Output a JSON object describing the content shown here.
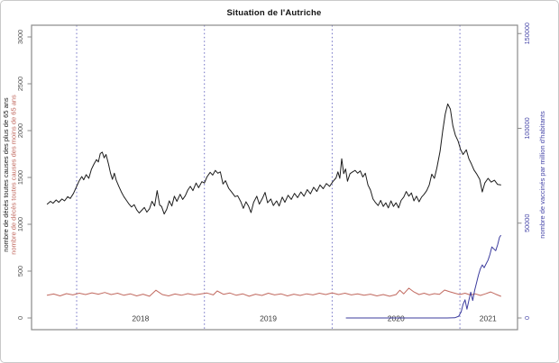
{
  "chart_data": {
    "type": "line",
    "title": "Situation de l'Autriche",
    "frame_color": "#8a8a8a",
    "x": {
      "range": [
        2017.647,
        2021.451
      ],
      "year_gridlines": [
        2018,
        2019,
        2020,
        2021
      ],
      "grid_color": "#7070c4",
      "label_color": "#3a3a3a",
      "year_labels": [
        {
          "text": "2018",
          "t": 2018.5
        },
        {
          "text": "2019",
          "t": 2019.5
        },
        {
          "text": "2020",
          "t": 2020.5
        },
        {
          "text": "2021",
          "t": 2021.22
        }
      ]
    },
    "y_left": {
      "title_over65": "nombre de décès toutes causes des plus de 65 ans",
      "title_under65": "nombre de décès toutes causes des moins de 65 ans",
      "title_color_over65": "#1c1c1c",
      "title_color_under65": "#c1695f",
      "ticks": [
        0,
        500,
        1000,
        1500,
        2000,
        2500,
        3000
      ],
      "range": [
        -125,
        3125
      ],
      "tick_color": "#4d4d4d"
    },
    "y_right": {
      "title": "nombre de vaccinés par million d'habitants",
      "ticks": [
        0,
        50000,
        100000,
        150000
      ],
      "range": [
        -6175,
        154375
      ],
      "tick_color": "#4646a8"
    },
    "series": [
      {
        "name": "deces-plus-65",
        "label": "nombre de décès toutes causes des plus de 65 ans",
        "color": "#1c1c1c",
        "axis": "left",
        "points": [
          [
            2017.77,
            1215
          ],
          [
            2017.795,
            1245
          ],
          [
            2017.815,
            1225
          ],
          [
            2017.84,
            1260
          ],
          [
            2017.86,
            1235
          ],
          [
            2017.885,
            1270
          ],
          [
            2017.905,
            1250
          ],
          [
            2017.93,
            1295
          ],
          [
            2017.95,
            1275
          ],
          [
            2017.975,
            1330
          ],
          [
            2018.0,
            1405
          ],
          [
            2018.02,
            1465
          ],
          [
            2018.04,
            1510
          ],
          [
            2018.055,
            1475
          ],
          [
            2018.075,
            1530
          ],
          [
            2018.095,
            1490
          ],
          [
            2018.115,
            1585
          ],
          [
            2018.135,
            1640
          ],
          [
            2018.155,
            1690
          ],
          [
            2018.17,
            1665
          ],
          [
            2018.185,
            1755
          ],
          [
            2018.2,
            1770
          ],
          [
            2018.215,
            1710
          ],
          [
            2018.23,
            1745
          ],
          [
            2018.25,
            1640
          ],
          [
            2018.265,
            1545
          ],
          [
            2018.28,
            1480
          ],
          [
            2018.295,
            1545
          ],
          [
            2018.31,
            1470
          ],
          [
            2018.33,
            1405
          ],
          [
            2018.35,
            1345
          ],
          [
            2018.37,
            1295
          ],
          [
            2018.39,
            1255
          ],
          [
            2018.41,
            1215
          ],
          [
            2018.43,
            1185
          ],
          [
            2018.45,
            1210
          ],
          [
            2018.47,
            1155
          ],
          [
            2018.49,
            1120
          ],
          [
            2018.51,
            1150
          ],
          [
            2018.53,
            1180
          ],
          [
            2018.55,
            1130
          ],
          [
            2018.57,
            1165
          ],
          [
            2018.59,
            1245
          ],
          [
            2018.61,
            1195
          ],
          [
            2018.63,
            1360
          ],
          [
            2018.65,
            1205
          ],
          [
            2018.665,
            1190
          ],
          [
            2018.685,
            1110
          ],
          [
            2018.705,
            1160
          ],
          [
            2018.725,
            1250
          ],
          [
            2018.745,
            1195
          ],
          [
            2018.765,
            1300
          ],
          [
            2018.785,
            1245
          ],
          [
            2018.81,
            1320
          ],
          [
            2018.83,
            1265
          ],
          [
            2018.85,
            1305
          ],
          [
            2018.87,
            1365
          ],
          [
            2018.89,
            1405
          ],
          [
            2018.91,
            1360
          ],
          [
            2018.935,
            1440
          ],
          [
            2018.955,
            1390
          ],
          [
            2018.98,
            1455
          ],
          [
            2019.0,
            1440
          ],
          [
            2019.02,
            1505
          ],
          [
            2019.045,
            1555
          ],
          [
            2019.065,
            1525
          ],
          [
            2019.085,
            1575
          ],
          [
            2019.105,
            1545
          ],
          [
            2019.125,
            1560
          ],
          [
            2019.145,
            1430
          ],
          [
            2019.165,
            1465
          ],
          [
            2019.19,
            1385
          ],
          [
            2019.215,
            1340
          ],
          [
            2019.24,
            1295
          ],
          [
            2019.26,
            1305
          ],
          [
            2019.285,
            1240
          ],
          [
            2019.305,
            1170
          ],
          [
            2019.325,
            1240
          ],
          [
            2019.345,
            1195
          ],
          [
            2019.365,
            1125
          ],
          [
            2019.385,
            1235
          ],
          [
            2019.41,
            1300
          ],
          [
            2019.43,
            1215
          ],
          [
            2019.455,
            1280
          ],
          [
            2019.475,
            1340
          ],
          [
            2019.495,
            1230
          ],
          [
            2019.52,
            1270
          ],
          [
            2019.54,
            1200
          ],
          [
            2019.565,
            1250
          ],
          [
            2019.585,
            1195
          ],
          [
            2019.61,
            1290
          ],
          [
            2019.63,
            1235
          ],
          [
            2019.655,
            1310
          ],
          [
            2019.68,
            1265
          ],
          [
            2019.705,
            1330
          ],
          [
            2019.73,
            1285
          ],
          [
            2019.755,
            1345
          ],
          [
            2019.78,
            1300
          ],
          [
            2019.805,
            1370
          ],
          [
            2019.83,
            1325
          ],
          [
            2019.855,
            1395
          ],
          [
            2019.88,
            1350
          ],
          [
            2019.905,
            1420
          ],
          [
            2019.93,
            1380
          ],
          [
            2019.955,
            1435
          ],
          [
            2019.98,
            1405
          ],
          [
            2020.005,
            1455
          ],
          [
            2020.03,
            1495
          ],
          [
            2020.045,
            1560
          ],
          [
            2020.06,
            1490
          ],
          [
            2020.075,
            1700
          ],
          [
            2020.09,
            1540
          ],
          [
            2020.105,
            1590
          ],
          [
            2020.12,
            1460
          ],
          [
            2020.14,
            1540
          ],
          [
            2020.16,
            1560
          ],
          [
            2020.18,
            1575
          ],
          [
            2020.2,
            1545
          ],
          [
            2020.22,
            1570
          ],
          [
            2020.24,
            1505
          ],
          [
            2020.26,
            1545
          ],
          [
            2020.28,
            1420
          ],
          [
            2020.3,
            1365
          ],
          [
            2020.32,
            1270
          ],
          [
            2020.34,
            1230
          ],
          [
            2020.36,
            1200
          ],
          [
            2020.38,
            1255
          ],
          [
            2020.4,
            1190
          ],
          [
            2020.42,
            1230
          ],
          [
            2020.44,
            1175
          ],
          [
            2020.46,
            1250
          ],
          [
            2020.48,
            1190
          ],
          [
            2020.5,
            1230
          ],
          [
            2020.52,
            1175
          ],
          [
            2020.54,
            1255
          ],
          [
            2020.56,
            1290
          ],
          [
            2020.58,
            1350
          ],
          [
            2020.6,
            1300
          ],
          [
            2020.62,
            1335
          ],
          [
            2020.64,
            1250
          ],
          [
            2020.66,
            1300
          ],
          [
            2020.68,
            1240
          ],
          [
            2020.7,
            1290
          ],
          [
            2020.72,
            1320
          ],
          [
            2020.74,
            1360
          ],
          [
            2020.76,
            1420
          ],
          [
            2020.78,
            1535
          ],
          [
            2020.8,
            1490
          ],
          [
            2020.82,
            1605
          ],
          [
            2020.845,
            1780
          ],
          [
            2020.865,
            1995
          ],
          [
            2020.885,
            2175
          ],
          [
            2020.905,
            2285
          ],
          [
            2020.925,
            2230
          ],
          [
            2020.945,
            2050
          ],
          [
            2020.965,
            1950
          ],
          [
            2020.985,
            1890
          ],
          [
            2021.005,
            1800
          ],
          [
            2021.025,
            1745
          ],
          [
            2021.05,
            1795
          ],
          [
            2021.07,
            1700
          ],
          [
            2021.09,
            1645
          ],
          [
            2021.11,
            1580
          ],
          [
            2021.13,
            1540
          ],
          [
            2021.155,
            1480
          ],
          [
            2021.175,
            1345
          ],
          [
            2021.195,
            1440
          ],
          [
            2021.22,
            1490
          ],
          [
            2021.245,
            1450
          ],
          [
            2021.27,
            1470
          ],
          [
            2021.295,
            1425
          ],
          [
            2021.32,
            1420
          ]
        ]
      },
      {
        "name": "deces-moins-65",
        "label": "nombre de décès toutes causes des moins de 65 ans",
        "color": "#c1695f",
        "axis": "left",
        "points": [
          [
            2017.77,
            242
          ],
          [
            2017.82,
            256
          ],
          [
            2017.87,
            236
          ],
          [
            2017.92,
            260
          ],
          [
            2017.97,
            246
          ],
          [
            2018.02,
            264
          ],
          [
            2018.07,
            250
          ],
          [
            2018.12,
            268
          ],
          [
            2018.17,
            254
          ],
          [
            2018.22,
            272
          ],
          [
            2018.27,
            250
          ],
          [
            2018.32,
            264
          ],
          [
            2018.37,
            242
          ],
          [
            2018.42,
            258
          ],
          [
            2018.47,
            236
          ],
          [
            2018.52,
            254
          ],
          [
            2018.57,
            232
          ],
          [
            2018.62,
            296
          ],
          [
            2018.67,
            250
          ],
          [
            2018.72,
            236
          ],
          [
            2018.77,
            256
          ],
          [
            2018.82,
            242
          ],
          [
            2018.87,
            260
          ],
          [
            2018.92,
            246
          ],
          [
            2018.97,
            256
          ],
          [
            2019.02,
            266
          ],
          [
            2019.07,
            246
          ],
          [
            2019.1,
            288
          ],
          [
            2019.15,
            252
          ],
          [
            2019.2,
            266
          ],
          [
            2019.25,
            242
          ],
          [
            2019.3,
            258
          ],
          [
            2019.35,
            232
          ],
          [
            2019.4,
            254
          ],
          [
            2019.45,
            240
          ],
          [
            2019.5,
            264
          ],
          [
            2019.55,
            246
          ],
          [
            2019.6,
            258
          ],
          [
            2019.65,
            236
          ],
          [
            2019.7,
            254
          ],
          [
            2019.75,
            240
          ],
          [
            2019.8,
            258
          ],
          [
            2019.85,
            246
          ],
          [
            2019.9,
            264
          ],
          [
            2019.95,
            250
          ],
          [
            2020.0,
            268
          ],
          [
            2020.05,
            250
          ],
          [
            2020.1,
            264
          ],
          [
            2020.15,
            246
          ],
          [
            2020.2,
            258
          ],
          [
            2020.25,
            242
          ],
          [
            2020.3,
            254
          ],
          [
            2020.35,
            236
          ],
          [
            2020.4,
            250
          ],
          [
            2020.45,
            232
          ],
          [
            2020.5,
            250
          ],
          [
            2020.53,
            296
          ],
          [
            2020.56,
            258
          ],
          [
            2020.6,
            318
          ],
          [
            2020.64,
            278
          ],
          [
            2020.68,
            250
          ],
          [
            2020.72,
            264
          ],
          [
            2020.76,
            246
          ],
          [
            2020.8,
            260
          ],
          [
            2020.84,
            252
          ],
          [
            2020.88,
            298
          ],
          [
            2020.92,
            280
          ],
          [
            2020.96,
            264
          ],
          [
            2021.0,
            250
          ],
          [
            2021.04,
            264
          ],
          [
            2021.08,
            246
          ],
          [
            2021.12,
            258
          ],
          [
            2021.16,
            240
          ],
          [
            2021.2,
            258
          ],
          [
            2021.24,
            278
          ],
          [
            2021.28,
            254
          ],
          [
            2021.32,
            232
          ]
        ]
      },
      {
        "name": "vaccines-par-million",
        "label": "nombre de vaccinés par million d'habitants",
        "color": "#3c3c9e",
        "axis": "right",
        "points": [
          [
            2020.11,
            0
          ],
          [
            2020.2,
            0
          ],
          [
            2020.3,
            0
          ],
          [
            2020.4,
            0
          ],
          [
            2020.5,
            0
          ],
          [
            2020.6,
            0
          ],
          [
            2020.7,
            0
          ],
          [
            2020.8,
            0
          ],
          [
            2020.9,
            0
          ],
          [
            2020.96,
            100
          ],
          [
            2020.99,
            900
          ],
          [
            2021.01,
            3200
          ],
          [
            2021.025,
            7200
          ],
          [
            2021.04,
            9600
          ],
          [
            2021.055,
            4600
          ],
          [
            2021.07,
            9200
          ],
          [
            2021.085,
            13600
          ],
          [
            2021.1,
            9200
          ],
          [
            2021.115,
            14500
          ],
          [
            2021.13,
            18500
          ],
          [
            2021.145,
            22500
          ],
          [
            2021.16,
            26000
          ],
          [
            2021.175,
            28000
          ],
          [
            2021.19,
            26500
          ],
          [
            2021.205,
            28500
          ],
          [
            2021.22,
            30500
          ],
          [
            2021.235,
            33500
          ],
          [
            2021.25,
            37500
          ],
          [
            2021.265,
            36500
          ],
          [
            2021.28,
            35500
          ],
          [
            2021.295,
            38500
          ],
          [
            2021.31,
            42500
          ],
          [
            2021.32,
            43500
          ]
        ]
      }
    ]
  }
}
